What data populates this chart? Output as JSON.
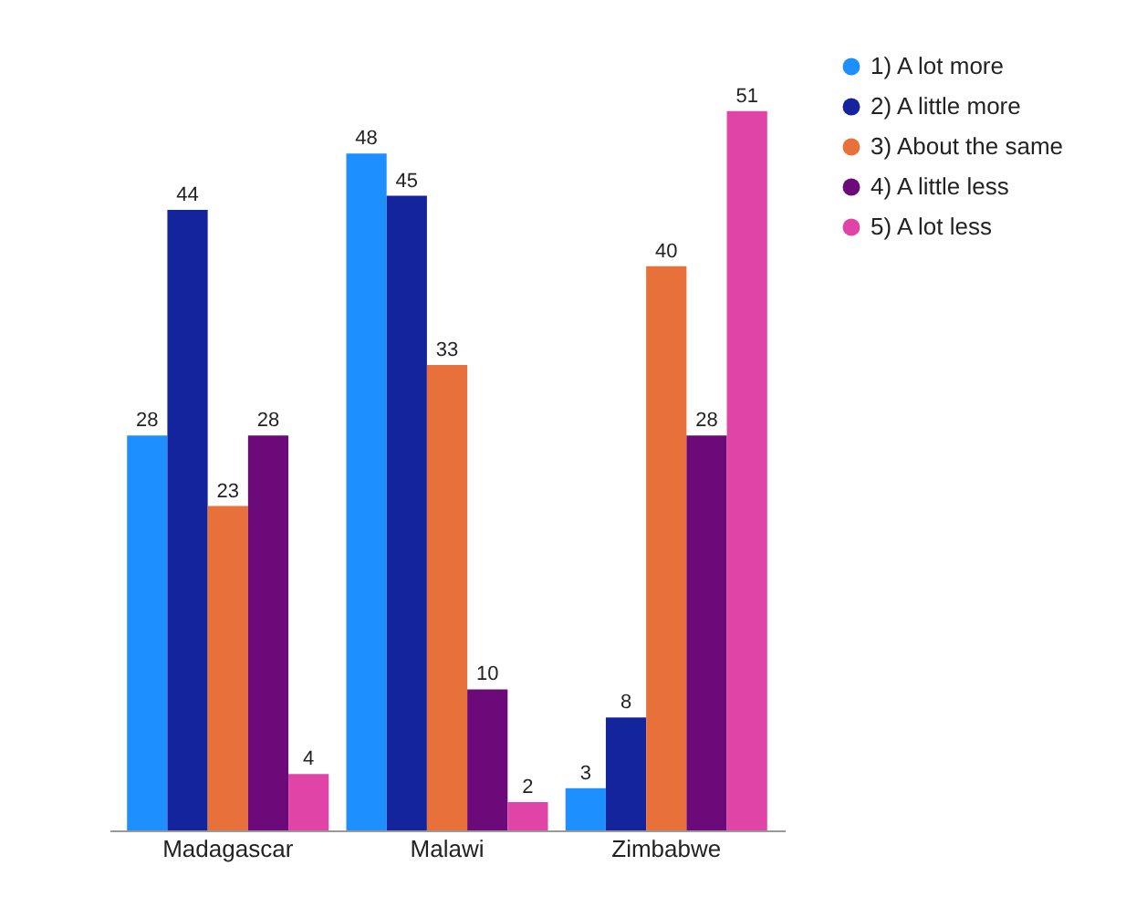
{
  "chart_data": {
    "type": "bar",
    "categories": [
      "Madagascar",
      "Malawi",
      "Zimbabwe"
    ],
    "series": [
      {
        "name": "1) A lot more",
        "color": "#1e8fff",
        "values": [
          28,
          48,
          3
        ]
      },
      {
        "name": "2) A little more",
        "color": "#14249c",
        "values": [
          44,
          45,
          8
        ]
      },
      {
        "name": "3) About the same",
        "color": "#e8703a",
        "values": [
          23,
          33,
          40
        ]
      },
      {
        "name": "4) A little less",
        "color": "#6b0a78",
        "values": [
          28,
          10,
          28
        ]
      },
      {
        "name": "5) A lot less",
        "color": "#e044a7",
        "values": [
          4,
          2,
          51
        ]
      }
    ],
    "data_labels": true,
    "legend": "right",
    "grid": false
  }
}
